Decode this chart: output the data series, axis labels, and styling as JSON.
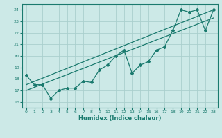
{
  "title": "",
  "xlabel": "Humidex (Indice chaleur)",
  "ylabel": "",
  "xlim": [
    -0.5,
    23.5
  ],
  "ylim": [
    15.5,
    24.5
  ],
  "xticks": [
    0,
    1,
    2,
    3,
    4,
    5,
    6,
    7,
    8,
    9,
    10,
    11,
    12,
    13,
    14,
    15,
    16,
    17,
    18,
    19,
    20,
    21,
    22,
    23
  ],
  "yticks": [
    16,
    17,
    18,
    19,
    20,
    21,
    22,
    23,
    24
  ],
  "bg_color": "#cce9e7",
  "grid_color": "#aacfcd",
  "line_color": "#1a7a6e",
  "data_x": [
    0,
    1,
    2,
    3,
    4,
    5,
    6,
    7,
    8,
    9,
    10,
    11,
    12,
    13,
    14,
    15,
    16,
    17,
    18,
    19,
    20,
    21,
    22,
    23
  ],
  "data_y": [
    18.3,
    17.5,
    17.5,
    16.3,
    17.0,
    17.2,
    17.2,
    17.8,
    17.7,
    18.8,
    19.2,
    20.0,
    20.5,
    18.5,
    19.2,
    19.5,
    20.5,
    20.8,
    22.2,
    24.0,
    23.8,
    24.0,
    22.2,
    24.0
  ],
  "trend1_x": [
    0,
    23
  ],
  "trend1_y": [
    17.5,
    24.0
  ],
  "trend2_x": [
    0,
    23
  ],
  "trend2_y": [
    17.0,
    23.3
  ]
}
